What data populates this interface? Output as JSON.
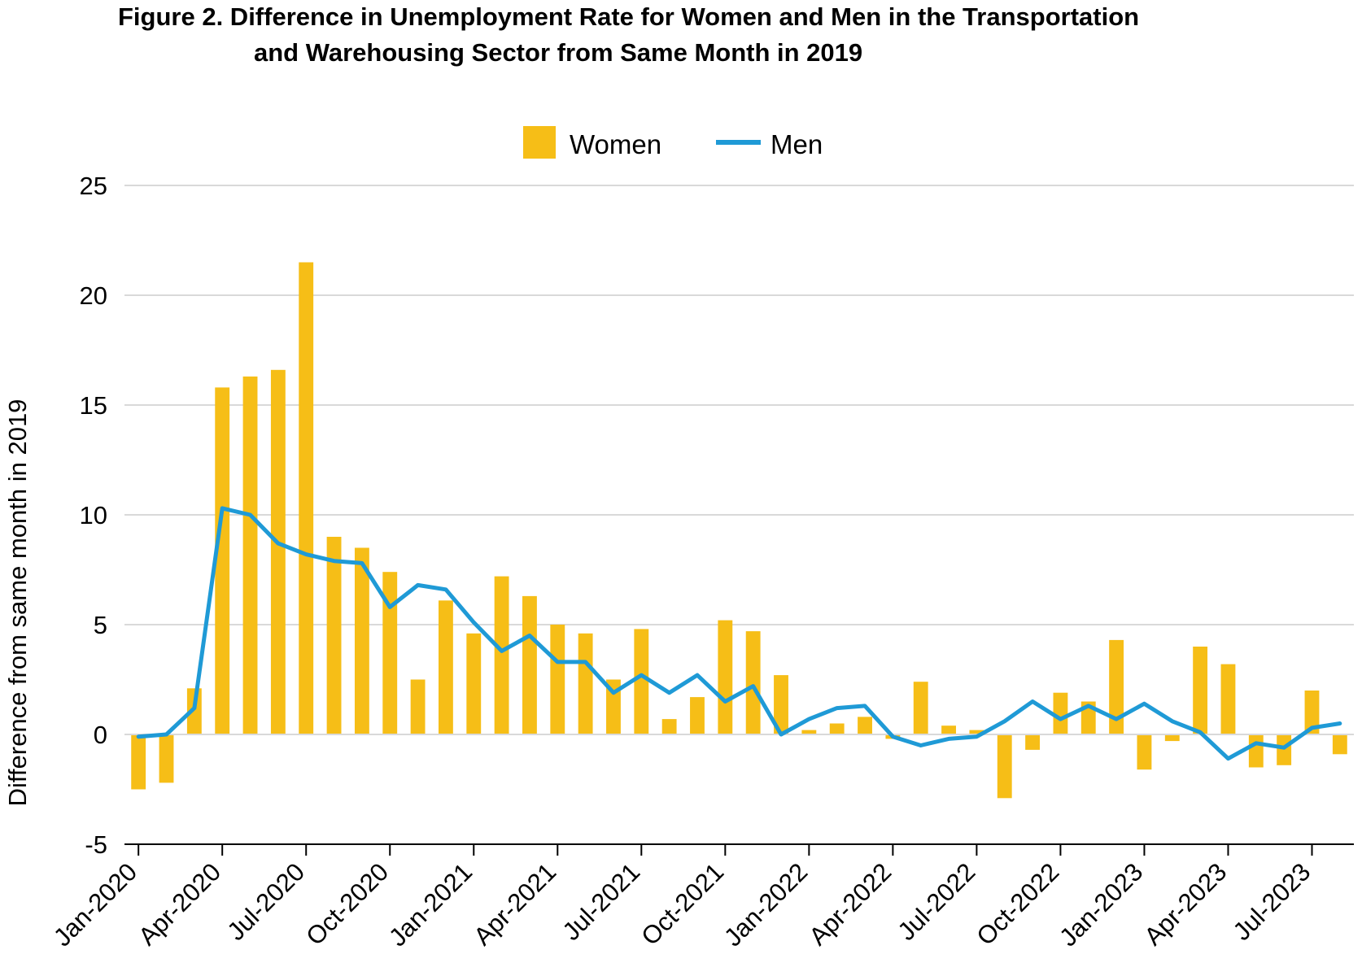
{
  "chart_data": {
    "type": "bar",
    "title_line1": "Figure 2. Difference in Unemployment Rate for Women and Men in the Transportation",
    "title_line2": "and Warehousing Sector from Same Month in 2019",
    "xlabel": "",
    "ylabel": "Difference from same month in 2019",
    "ylim": [
      -5,
      25
    ],
    "yticks": [
      -5,
      0,
      5,
      10,
      15,
      20,
      25
    ],
    "grid": true,
    "legend_position": "top-center",
    "x": [
      "Jan-2020",
      "Feb-2020",
      "Mar-2020",
      "Apr-2020",
      "May-2020",
      "Jun-2020",
      "Jul-2020",
      "Aug-2020",
      "Sep-2020",
      "Oct-2020",
      "Nov-2020",
      "Dec-2020",
      "Jan-2021",
      "Feb-2021",
      "Mar-2021",
      "Apr-2021",
      "May-2021",
      "Jun-2021",
      "Jul-2021",
      "Aug-2021",
      "Sep-2021",
      "Oct-2021",
      "Nov-2021",
      "Dec-2021",
      "Jan-2022",
      "Feb-2022",
      "Mar-2022",
      "Apr-2022",
      "May-2022",
      "Jun-2022",
      "Jul-2022",
      "Aug-2022",
      "Sep-2022",
      "Oct-2022",
      "Nov-2022",
      "Dec-2022",
      "Jan-2023",
      "Feb-2023",
      "Mar-2023",
      "Apr-2023",
      "May-2023",
      "Jun-2023",
      "Jul-2023",
      "Aug-2023"
    ],
    "xtick_labels": [
      "Jan-2020",
      "Apr-2020",
      "Jul-2020",
      "Oct-2020",
      "Jan-2021",
      "Apr-2021",
      "Jul-2021",
      "Oct-2021",
      "Jan-2022",
      "Apr-2022",
      "Jul-2022",
      "Oct-2022",
      "Jan-2023",
      "Apr-2023",
      "Jul-2023"
    ],
    "series": [
      {
        "name": "Women",
        "type": "bar",
        "color": "#F6BE17",
        "values": [
          -2.5,
          -2.2,
          2.1,
          15.8,
          16.3,
          16.6,
          21.5,
          9.0,
          8.5,
          7.4,
          2.5,
          6.1,
          4.6,
          7.2,
          6.3,
          5.0,
          4.6,
          2.5,
          4.8,
          0.7,
          1.7,
          5.2,
          4.7,
          2.7,
          0.2,
          0.5,
          0.8,
          -0.2,
          2.4,
          0.4,
          0.2,
          -2.9,
          -0.7,
          1.9,
          1.5,
          4.3,
          -1.6,
          -0.3,
          4.0,
          3.2,
          -1.5,
          -1.4,
          2.0,
          -0.9
        ]
      },
      {
        "name": "Men",
        "type": "line",
        "color": "#1F9AD6",
        "values": [
          -0.1,
          0.0,
          1.2,
          10.3,
          10.0,
          8.7,
          8.2,
          7.9,
          7.8,
          5.8,
          6.8,
          6.6,
          5.1,
          3.8,
          4.5,
          3.3,
          3.3,
          1.9,
          2.7,
          1.9,
          2.7,
          1.5,
          2.2,
          0.0,
          0.7,
          1.2,
          1.3,
          -0.1,
          -0.5,
          -0.2,
          -0.1,
          0.6,
          1.5,
          0.7,
          1.3,
          0.7,
          1.4,
          0.6,
          0.1,
          -1.1,
          -0.4,
          -0.6,
          0.3,
          0.5
        ]
      }
    ]
  }
}
